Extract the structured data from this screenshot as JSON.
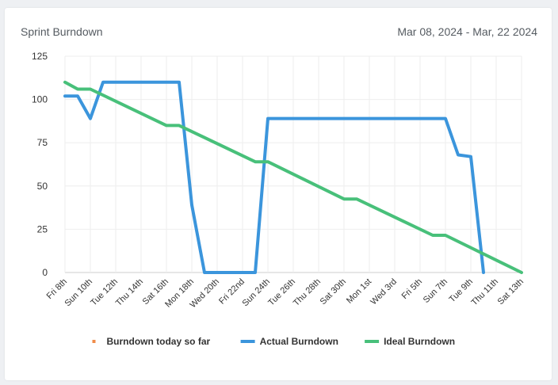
{
  "header": {
    "title": "Sprint Burndown",
    "date_range": "Mar 08, 2024 - Mar, 22 2024"
  },
  "colors": {
    "actual": "#3b95dc",
    "ideal": "#48c07a",
    "today": "#f08c4a",
    "grid": "#eeeeee",
    "axis": "#cccccc"
  },
  "chart_data": {
    "type": "line",
    "title": "Sprint Burndown",
    "xlabel": "",
    "ylabel": "",
    "ylim": [
      0,
      125
    ],
    "yticks": [
      0,
      25,
      50,
      75,
      100,
      125
    ],
    "grid": true,
    "legend_position": "bottom",
    "x": [
      0,
      1,
      2,
      3,
      4,
      5,
      6,
      7,
      8,
      9,
      10,
      11,
      12,
      13,
      14,
      15,
      16,
      17,
      18,
      19,
      20,
      21,
      22,
      23,
      24,
      25,
      26,
      27,
      28,
      29,
      30,
      31,
      32,
      33,
      34,
      35,
      36
    ],
    "xticks": [
      {
        "x": 0,
        "label": "Fri 8th"
      },
      {
        "x": 2,
        "label": "Sun 10th"
      },
      {
        "x": 4,
        "label": "Tue 12th"
      },
      {
        "x": 6,
        "label": "Thu 14th"
      },
      {
        "x": 8,
        "label": "Sat 16th"
      },
      {
        "x": 10,
        "label": "Mon 18th"
      },
      {
        "x": 12,
        "label": "Wed 20th"
      },
      {
        "x": 14,
        "label": "Fri 22nd"
      },
      {
        "x": 16,
        "label": "Sun 24th"
      },
      {
        "x": 18,
        "label": "Tue 26th"
      },
      {
        "x": 20,
        "label": "Thu 28th"
      },
      {
        "x": 22,
        "label": "Sat 30th"
      },
      {
        "x": 24,
        "label": "Mon 1st"
      },
      {
        "x": 26,
        "label": "Wed 3rd"
      },
      {
        "x": 28,
        "label": "Fri 5th"
      },
      {
        "x": 30,
        "label": "Sun 7th"
      },
      {
        "x": 32,
        "label": "Tue 9th"
      },
      {
        "x": 34,
        "label": "Thu 11th"
      },
      {
        "x": 36,
        "label": "Sat 13th"
      }
    ],
    "series": [
      {
        "name": "Burndown today so far",
        "key": "today",
        "points": []
      },
      {
        "name": "Actual Burndown",
        "key": "actual",
        "points": [
          [
            0,
            102
          ],
          [
            1,
            102
          ],
          [
            2,
            89
          ],
          [
            3,
            110
          ],
          [
            4,
            110
          ],
          [
            5,
            110
          ],
          [
            6,
            110
          ],
          [
            7,
            110
          ],
          [
            8,
            110
          ],
          [
            9,
            110
          ],
          [
            10,
            39
          ],
          [
            11,
            0
          ],
          [
            12,
            0
          ],
          [
            13,
            0
          ],
          [
            14,
            0
          ],
          [
            15,
            0
          ],
          [
            16,
            89
          ],
          [
            17,
            89
          ],
          [
            18,
            89
          ],
          [
            19,
            89
          ],
          [
            20,
            89
          ],
          [
            21,
            89
          ],
          [
            22,
            89
          ],
          [
            23,
            89
          ],
          [
            24,
            89
          ],
          [
            25,
            89
          ],
          [
            26,
            89
          ],
          [
            27,
            89
          ],
          [
            28,
            89
          ],
          [
            29,
            89
          ],
          [
            30,
            89
          ],
          [
            31,
            68
          ],
          [
            32,
            67
          ],
          [
            33,
            0
          ]
        ]
      },
      {
        "name": "Ideal Burndown",
        "key": "ideal",
        "points": [
          [
            0,
            110
          ],
          [
            1,
            106
          ],
          [
            2,
            106
          ],
          [
            8,
            85
          ],
          [
            9,
            85
          ],
          [
            15,
            64
          ],
          [
            16,
            64
          ],
          [
            22,
            42.5
          ],
          [
            23,
            42.5
          ],
          [
            29,
            21.5
          ],
          [
            30,
            21.5
          ],
          [
            36,
            0
          ]
        ]
      }
    ]
  }
}
